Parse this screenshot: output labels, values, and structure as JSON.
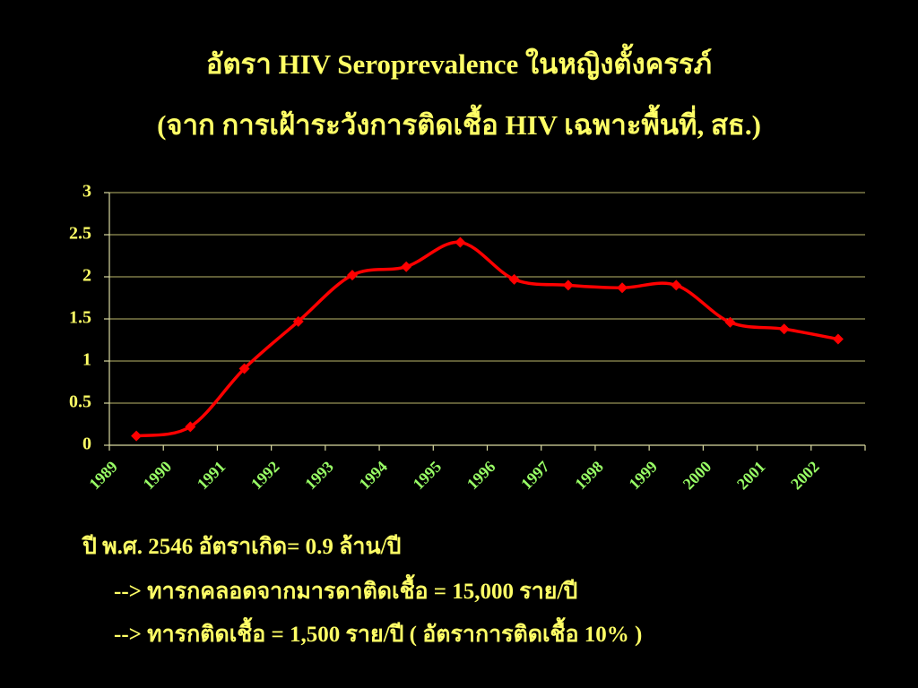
{
  "chart_data": {
    "type": "line",
    "title": "อัตรา HIV Seroprevalence ในหญิงตั้งครรภ์",
    "subtitle": "(จาก การเฝ้าระวังการติดเชื้อ HIV เฉพาะพื้นที่, สธ.)",
    "categories": [
      "1989",
      "1990",
      "1991",
      "1992",
      "1993",
      "1994",
      "1995",
      "1996",
      "1997",
      "1998",
      "1999",
      "2000",
      "2001",
      "2002"
    ],
    "series": [
      {
        "color": "#ff0000",
        "values": [
          0.11,
          0.22,
          0.91,
          1.47,
          2.02,
          2.12,
          2.41,
          1.97,
          1.9,
          1.87,
          1.9,
          1.46,
          1.38,
          1.26
        ]
      }
    ],
    "ylim": [
      0,
      3
    ],
    "yticks": [
      0,
      0.5,
      1,
      1.5,
      2,
      2.5,
      3
    ],
    "grid": true,
    "annotations": [
      "ปี พ.ศ. 2546 อัตราเกิด= 0.9 ล้าน/ปี",
      "--> ทารกคลอดจากมารดาติดเชื้อ = 15,000 ราย/ปี",
      "--> ทารกติดเชื้อ = 1,500 ราย/ปี ( อัตราการติดเชื้อ 10% )"
    ]
  }
}
